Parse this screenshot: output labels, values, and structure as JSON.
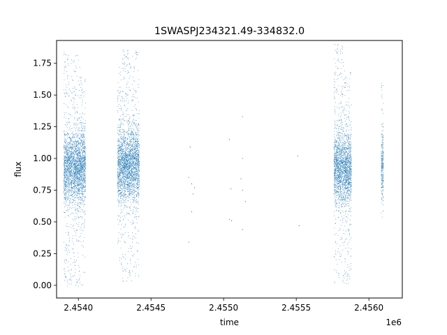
{
  "chart_data": {
    "type": "scatter",
    "title": "1SWASPJ234321.49-334832.0",
    "xlabel": "time",
    "ylabel": "flux",
    "x_offset_label": "1e6",
    "xlim": [
      2453850,
      2456230
    ],
    "ylim": [
      -0.1,
      1.93
    ],
    "xticks": [
      2454000,
      2454500,
      2455000,
      2455500,
      2456000
    ],
    "xtick_labels": [
      "2.4540",
      "2.4545",
      "2.4550",
      "2.4555",
      "2.4560"
    ],
    "yticks": [
      0.0,
      0.25,
      0.5,
      0.75,
      1.0,
      1.25,
      1.5,
      1.75
    ],
    "ytick_labels": [
      "0.00",
      "0.25",
      "0.50",
      "0.75",
      "1.00",
      "1.25",
      "1.50",
      "1.75"
    ],
    "grid": false,
    "marker_color": "#1f77b4",
    "series": [
      {
        "name": "",
        "observing_seasons": [
          {
            "x_range": [
              2453900,
              2454010
            ],
            "median_flux": 0.93,
            "flux_range": [
              -0.02,
              1.84
            ]
          },
          {
            "x_range": [
              2454010,
              2454050
            ],
            "median_flux": 0.93,
            "flux_range": [
              0.0,
              1.65
            ]
          },
          {
            "x_range": [
              2454270,
              2454300
            ],
            "median_flux": 0.93,
            "flux_range": [
              0.16,
              1.72
            ]
          },
          {
            "x_range": [
              2454300,
              2454420
            ],
            "median_flux": 0.95,
            "flux_range": [
              0.03,
              1.86
            ]
          },
          {
            "x_range": [
              2455760,
              2455830
            ],
            "median_flux": 0.92,
            "flux_range": [
              0.02,
              1.9
            ]
          },
          {
            "x_range": [
              2455830,
              2455880
            ],
            "median_flux": 0.92,
            "flux_range": [
              0.01,
              1.7
            ]
          },
          {
            "x_range": [
              2456085,
              2456100
            ],
            "median_flux": 0.93,
            "flux_range": [
              0.52,
              1.6
            ]
          }
        ],
        "isolated_points": [
          [
            2454770,
            1.09
          ],
          [
            2454760,
            0.85
          ],
          [
            2454780,
            0.8
          ],
          [
            2454790,
            0.72
          ],
          [
            2454800,
            0.77
          ],
          [
            2454780,
            0.58
          ],
          [
            2454760,
            0.34
          ],
          [
            2455040,
            1.15
          ],
          [
            2455050,
            0.76
          ],
          [
            2455040,
            0.52
          ],
          [
            2455055,
            0.51
          ],
          [
            2455130,
            1.33
          ],
          [
            2455130,
            1.0
          ],
          [
            2455120,
            0.84
          ],
          [
            2455130,
            0.75
          ],
          [
            2455150,
            0.66
          ],
          [
            2455130,
            0.44
          ],
          [
            2455510,
            1.02
          ],
          [
            2455520,
            0.47
          ]
        ]
      }
    ]
  }
}
